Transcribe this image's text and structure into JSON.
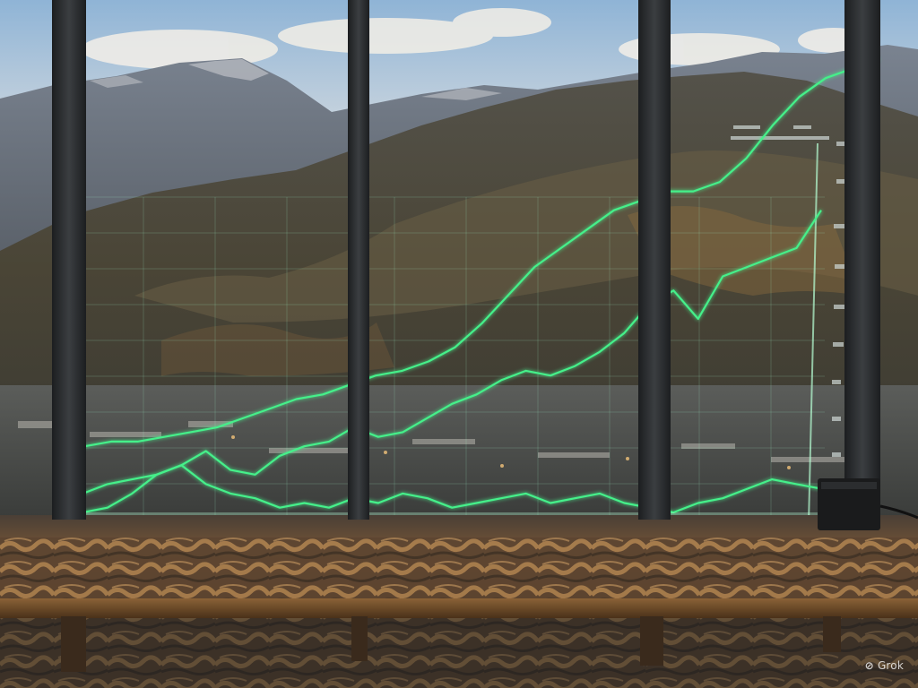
{
  "watermark": {
    "text": "Grok",
    "icon": "grok-logo-icon"
  },
  "scene": {
    "description_tags": [
      "mountains",
      "window",
      "holographic-chart",
      "desk"
    ],
    "colors": {
      "sky": "#c9d4dc",
      "mountain_far": "#6e7580",
      "mountain_near": "#4c4a3e",
      "line_glow": "#45f08a",
      "frame": "#2a2c2e",
      "desk": "#6b4a2c"
    }
  },
  "chart_data": {
    "type": "line",
    "series": [
      {
        "values": [
          12,
          14,
          15,
          15,
          16,
          17,
          18,
          20,
          22,
          24,
          25,
          27,
          29,
          30,
          32,
          35,
          40,
          46,
          52,
          56,
          60,
          64,
          66,
          68,
          68,
          70,
          75,
          82,
          88,
          92,
          94,
          96
        ]
      },
      {
        "values": [
          5,
          4,
          6,
          7,
          8,
          10,
          13,
          9,
          8,
          12,
          14,
          15,
          18,
          16,
          17,
          20,
          23,
          25,
          28,
          30,
          29,
          31,
          34,
          38,
          44,
          47,
          41,
          50,
          52,
          54,
          56,
          64
        ]
      },
      {
        "values": [
          0,
          0,
          1,
          4,
          8,
          10,
          6,
          4,
          3,
          1,
          2,
          1,
          3,
          2,
          4,
          3,
          1,
          2,
          3,
          4,
          2,
          3,
          4,
          2,
          1,
          0,
          2,
          3,
          5,
          7,
          6,
          5
        ]
      }
    ]
  }
}
